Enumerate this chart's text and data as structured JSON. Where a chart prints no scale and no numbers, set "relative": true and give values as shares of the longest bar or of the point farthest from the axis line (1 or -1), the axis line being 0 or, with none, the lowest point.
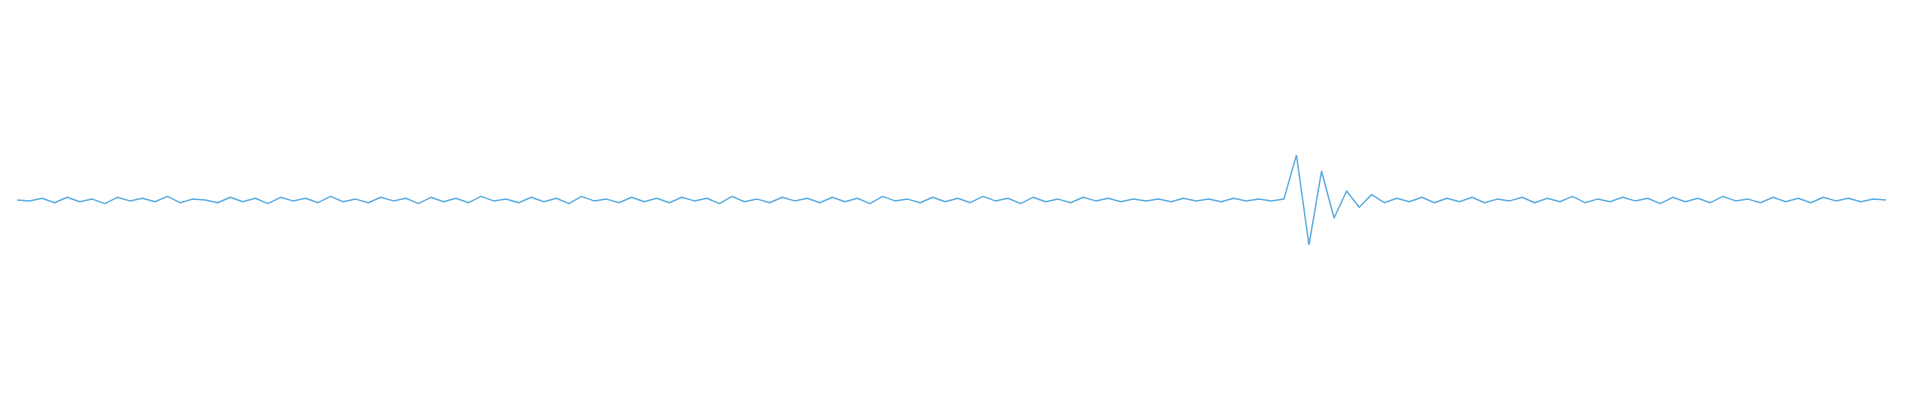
{
  "chart_data": {
    "type": "line",
    "relative": true,
    "marker": "none",
    "line_style": "solid",
    "categories": [
      null,
      null,
      null,
      null,
      null,
      null,
      null,
      null,
      null,
      null,
      null,
      null,
      null,
      null,
      null,
      null,
      null,
      null,
      null,
      null,
      null,
      null,
      null,
      null,
      null,
      null,
      null,
      null,
      null,
      null,
      null,
      null,
      null,
      null,
      null,
      null,
      null,
      null,
      null,
      null,
      null,
      null,
      null,
      null,
      null,
      null,
      null,
      null,
      null,
      null,
      null,
      null,
      null,
      null,
      null,
      null,
      null,
      null,
      null,
      null,
      null,
      null,
      null,
      null,
      null,
      null,
      null,
      null,
      null,
      null,
      null,
      null,
      null,
      null,
      null,
      null,
      null,
      null,
      null,
      null,
      null,
      null,
      null,
      null,
      null,
      null,
      null,
      null,
      null,
      null,
      null,
      null,
      null,
      null,
      null,
      null,
      null,
      null,
      null,
      null,
      null,
      null,
      null,
      null,
      null,
      null,
      null,
      null,
      null,
      null,
      null,
      null,
      null,
      null,
      null,
      null,
      null,
      null,
      null,
      null,
      null,
      null,
      null,
      null,
      null,
      null,
      null,
      null,
      null,
      null,
      null,
      null,
      null,
      null,
      null,
      null,
      null,
      null,
      null,
      null,
      null,
      null,
      null,
      null,
      null,
      null,
      null,
      null,
      null,
      null
    ],
    "series": [
      {
        "color": "#5dade2",
        "values": [
          0.5,
          0.49,
          0.52,
          0.47,
          0.53,
          0.48,
          0.51,
          0.46,
          0.53,
          0.49,
          0.52,
          0.48,
          0.54,
          0.47,
          0.51,
          0.5,
          0.47,
          0.53,
          0.48,
          0.52,
          0.46,
          0.53,
          0.49,
          0.52,
          0.47,
          0.54,
          0.48,
          0.51,
          0.47,
          0.53,
          0.49,
          0.52,
          0.46,
          0.53,
          0.48,
          0.52,
          0.47,
          0.54,
          0.49,
          0.51,
          0.47,
          0.53,
          0.48,
          0.52,
          0.46,
          0.54,
          0.49,
          0.51,
          0.47,
          0.53,
          0.48,
          0.52,
          0.47,
          0.53,
          0.49,
          0.52,
          0.46,
          0.54,
          0.48,
          0.51,
          0.47,
          0.53,
          0.49,
          0.52,
          0.47,
          0.53,
          0.48,
          0.52,
          0.46,
          0.54,
          0.49,
          0.51,
          0.47,
          0.53,
          0.48,
          0.52,
          0.47,
          0.54,
          0.49,
          0.52,
          0.46,
          0.53,
          0.48,
          0.51,
          0.47,
          0.53,
          0.49,
          0.52,
          0.48,
          0.51,
          0.49,
          0.51,
          0.48,
          0.52,
          0.49,
          0.51,
          0.48,
          0.52,
          0.49,
          0.51,
          0.49,
          0.51,
          1,
          0,
          0.82,
          0.3,
          0.6,
          0.42,
          0.56,
          0.47,
          0.52,
          0.48,
          0.53,
          0.47,
          0.52,
          0.48,
          0.53,
          0.47,
          0.51,
          0.49,
          0.53,
          0.47,
          0.52,
          0.48,
          0.54,
          0.47,
          0.51,
          0.48,
          0.53,
          0.49,
          0.52,
          0.46,
          0.53,
          0.48,
          0.52,
          0.47,
          0.54,
          0.49,
          0.51,
          0.47,
          0.53,
          0.48,
          0.52,
          0.47,
          0.53,
          0.49,
          0.52,
          0.48,
          0.51,
          0.5
        ]
      }
    ]
  }
}
